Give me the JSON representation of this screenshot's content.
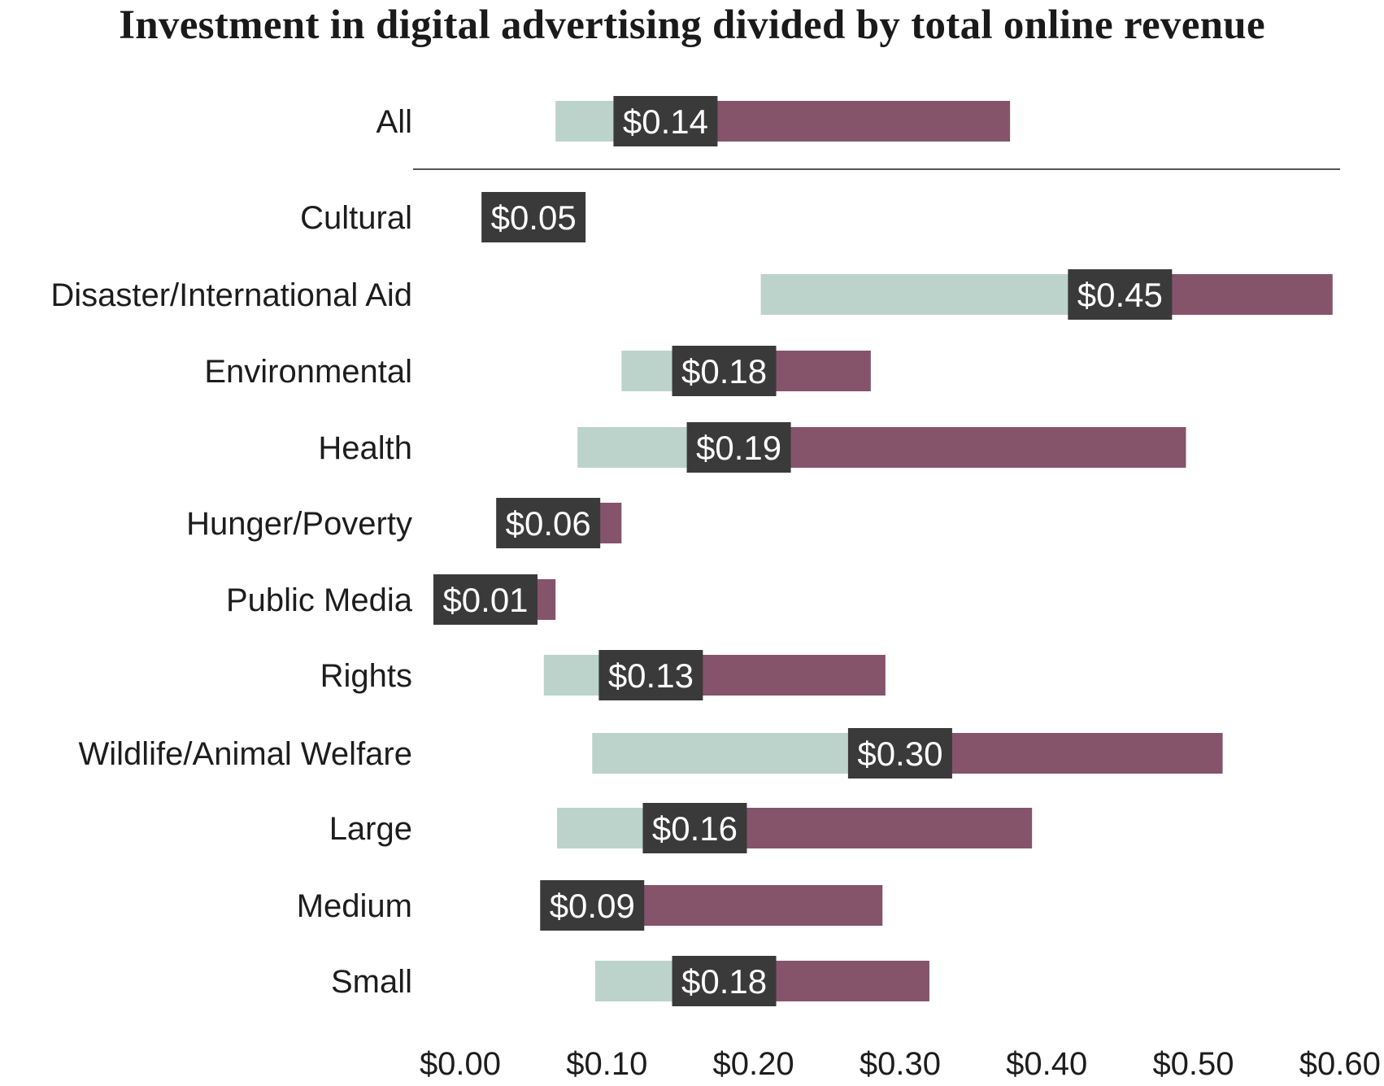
{
  "chart_data": {
    "type": "bar",
    "title": "Investment in digital advertising divided by total online revenue",
    "xlabel": "",
    "ylabel": "",
    "xlim": [
      0,
      0.6
    ],
    "x_ticks": [
      "$0.00",
      "$0.10",
      "$0.20",
      "$0.30",
      "$0.40",
      "$0.50",
      "$0.60"
    ],
    "x_tick_values": [
      0,
      0.1,
      0.2,
      0.3,
      0.4,
      0.5,
      0.6
    ],
    "categories": [
      "All",
      "Cultural",
      "Disaster/International Aid",
      "Environmental",
      "Health",
      "Hunger/Poverty",
      "Public Media",
      "Rights",
      "Wildlife/Animal Welfare",
      "Large",
      "Medium",
      "Small"
    ],
    "values": [
      0.14,
      0.05,
      0.45,
      0.18,
      0.19,
      0.06,
      0.01,
      0.13,
      0.3,
      0.16,
      0.09,
      0.18
    ],
    "value_labels": [
      "$0.14",
      "$0.05",
      "$0.45",
      "$0.18",
      "$0.19",
      "$0.06",
      "$0.01",
      "$0.13",
      "$0.30",
      "$0.16",
      "$0.09",
      "$0.18"
    ],
    "ranges": [
      [
        0.065,
        0.375
      ],
      [
        0.05,
        0.05
      ],
      [
        0.205,
        0.595
      ],
      [
        0.11,
        0.28
      ],
      [
        0.08,
        0.495
      ],
      [
        0.05,
        0.11
      ],
      [
        0.01,
        0.065
      ],
      [
        0.057,
        0.29
      ],
      [
        0.09,
        0.52
      ],
      [
        0.066,
        0.39
      ],
      [
        0.057,
        0.288
      ],
      [
        0.092,
        0.32
      ]
    ],
    "separator_after": "All",
    "colors": {
      "lower": "#bcd3cc",
      "upper": "#85546b",
      "label_box": "#3a3a3a"
    },
    "grid": false
  }
}
